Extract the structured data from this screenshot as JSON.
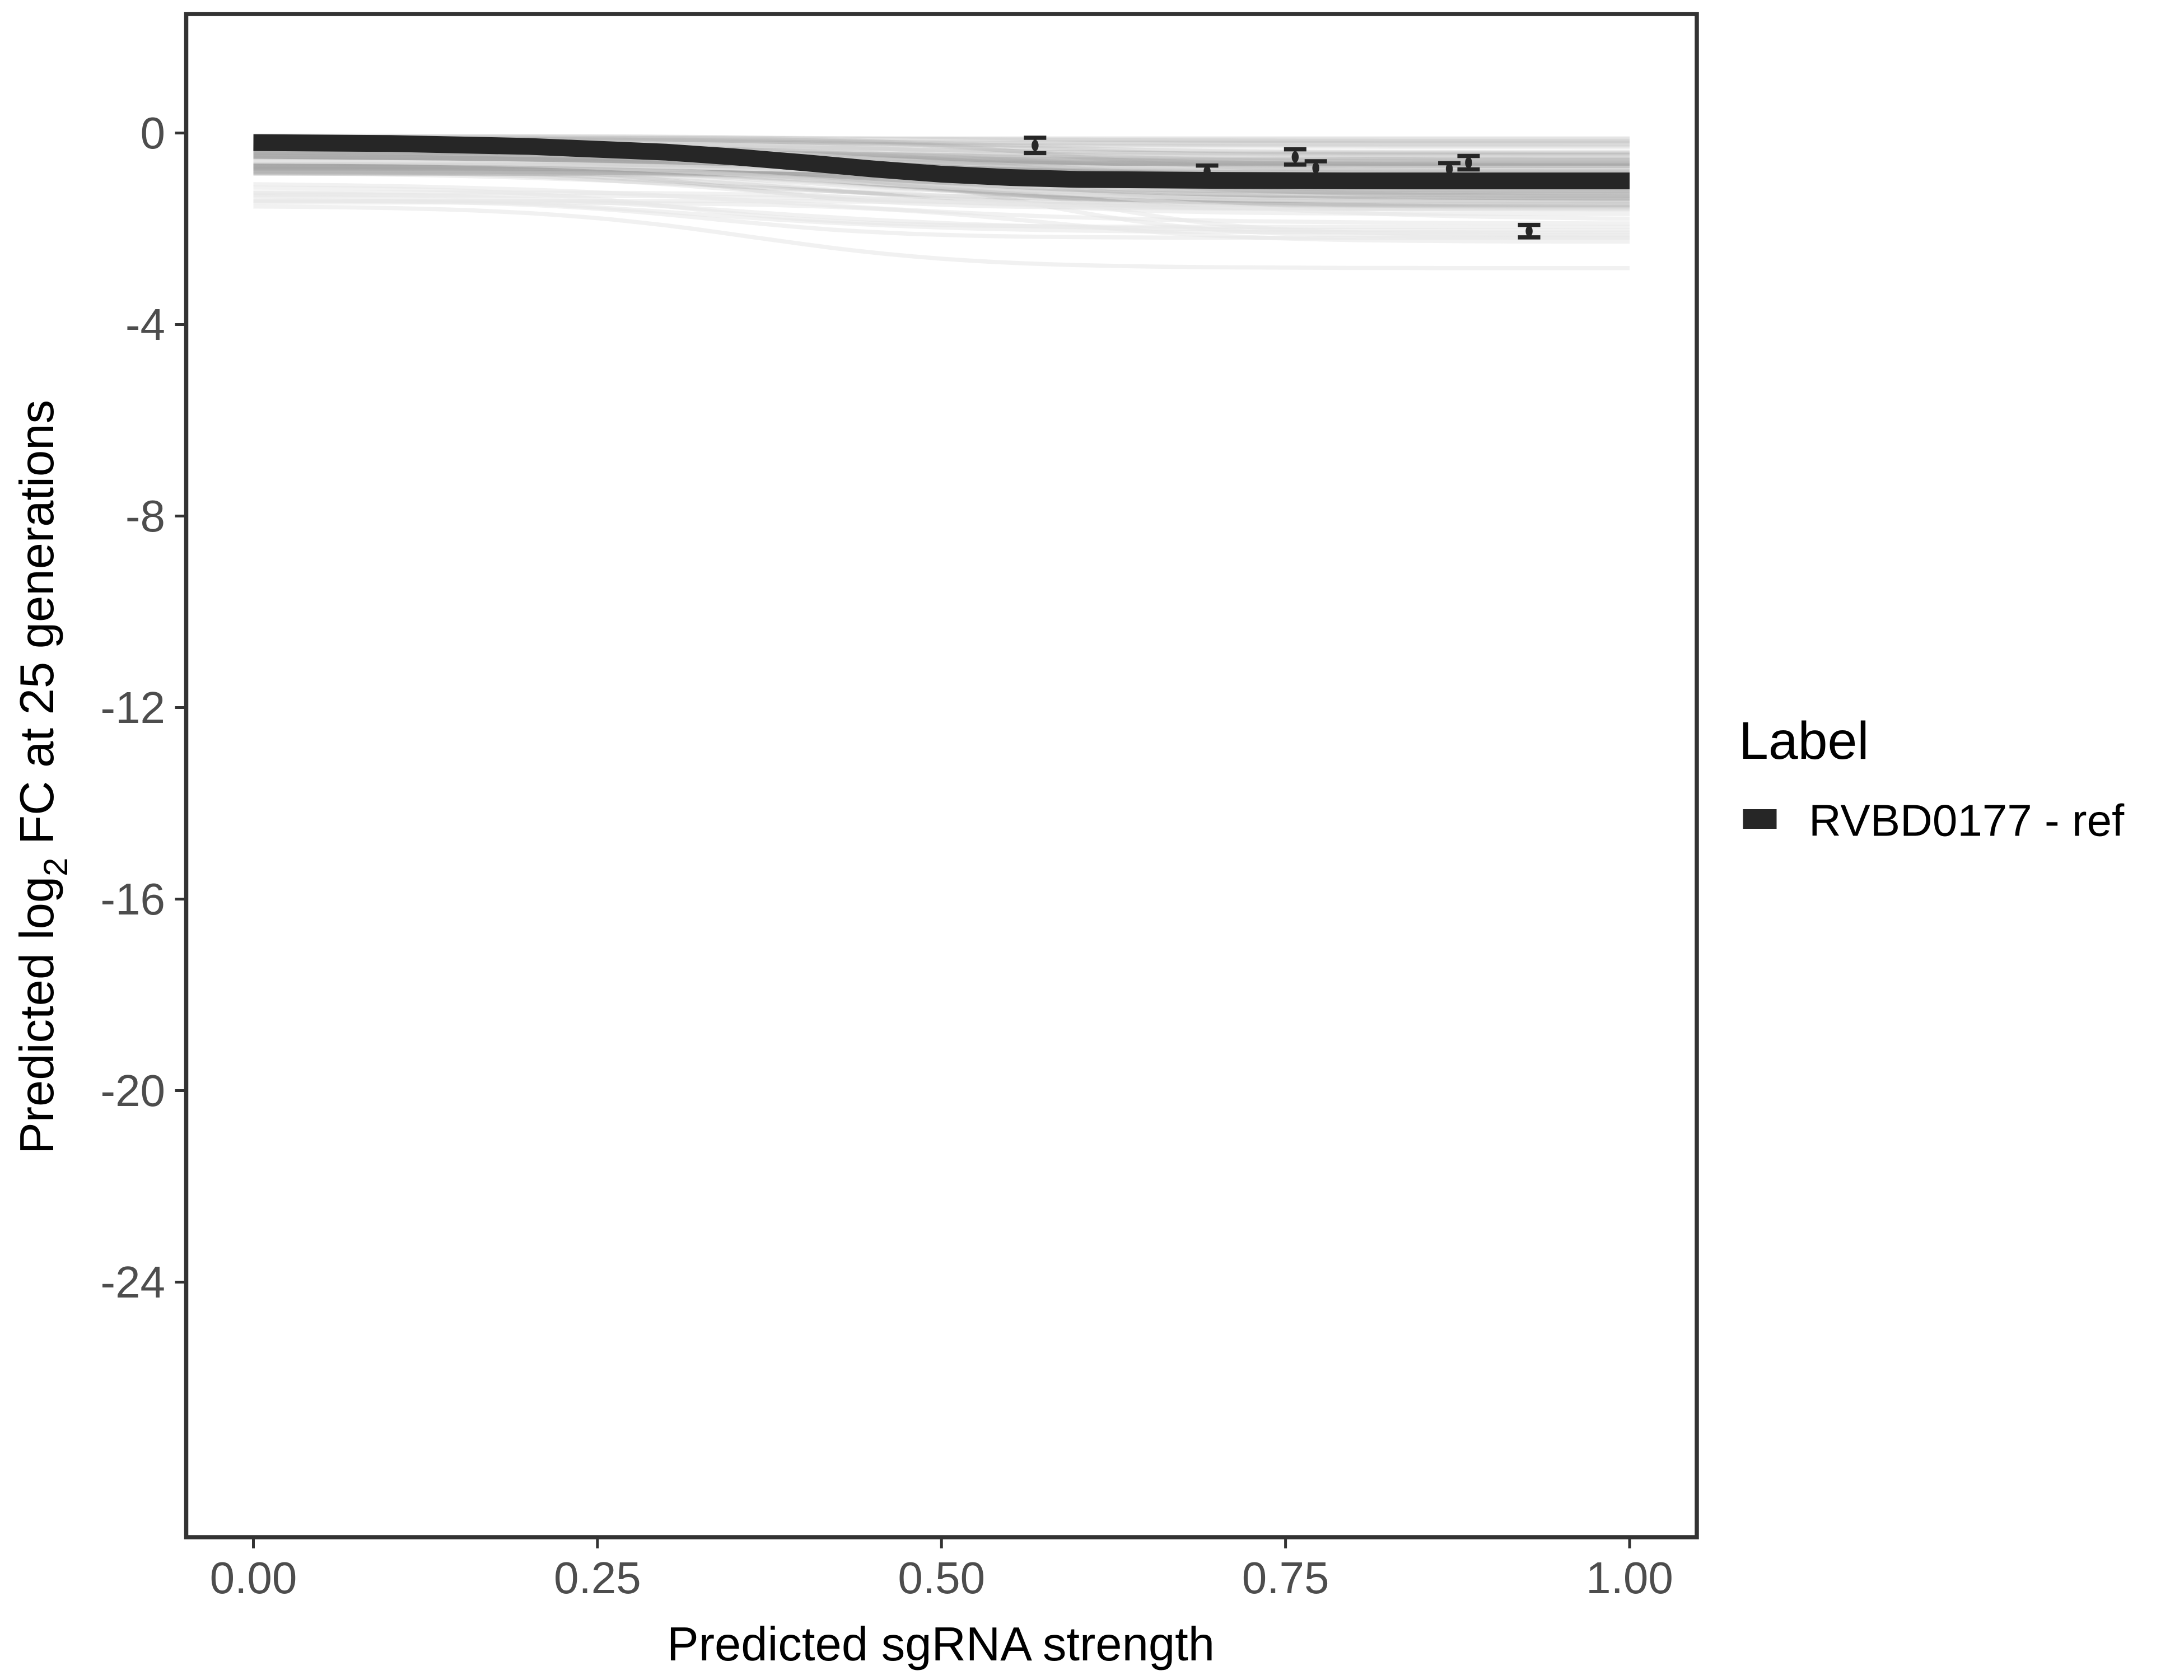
{
  "chart_data": {
    "type": "line",
    "xlabel": "Predicted sgRNA strength",
    "ylabel_prefix": "Predicted  log",
    "ylabel_sub": "2",
    "ylabel_suffix": " FC at 25 generations",
    "xlim": [
      -0.05,
      1.05
    ],
    "ylim": [
      -29.5,
      2.5
    ],
    "x_ticks": [
      0,
      0.25,
      0.5,
      0.75,
      1
    ],
    "x_tick_labels": [
      "0.00",
      "0.25",
      "0.50",
      "0.75",
      "1.00"
    ],
    "y_ticks": [
      0,
      -4,
      -8,
      -12,
      -16,
      -20,
      -24
    ],
    "y_tick_labels": [
      "0",
      "-4",
      "-8",
      "-12",
      "-16",
      "-20",
      "-24"
    ],
    "grid": false,
    "legend": {
      "title": "Label",
      "placement": "right",
      "entries": [
        {
          "label": "RVBD0177 - ref",
          "color": "#262626"
        }
      ]
    },
    "series": [
      {
        "name": "RVBD0177 - ref",
        "color": "#262626",
        "x": [
          0,
          0.1,
          0.2,
          0.3,
          0.35,
          0.4,
          0.45,
          0.5,
          0.55,
          0.6,
          0.7,
          0.8,
          0.9,
          1.0
        ],
        "y": [
          -0.2,
          -0.22,
          -0.28,
          -0.4,
          -0.5,
          -0.62,
          -0.75,
          -0.86,
          -0.93,
          -0.97,
          -0.99,
          -1.0,
          -1.0,
          -1.0
        ]
      }
    ],
    "posterior_draws_color": "#a6a6a6",
    "observed_points": {
      "color": "#262626",
      "x": [
        0.568,
        0.693,
        0.757,
        0.772,
        0.869,
        0.883,
        0.927
      ],
      "y": [
        -0.26,
        -0.8,
        -0.5,
        -0.73,
        -0.75,
        -0.62,
        -2.05
      ],
      "error": [
        0.16,
        0.12,
        0.16,
        0.14,
        0.12,
        0.14,
        0.13
      ]
    }
  }
}
